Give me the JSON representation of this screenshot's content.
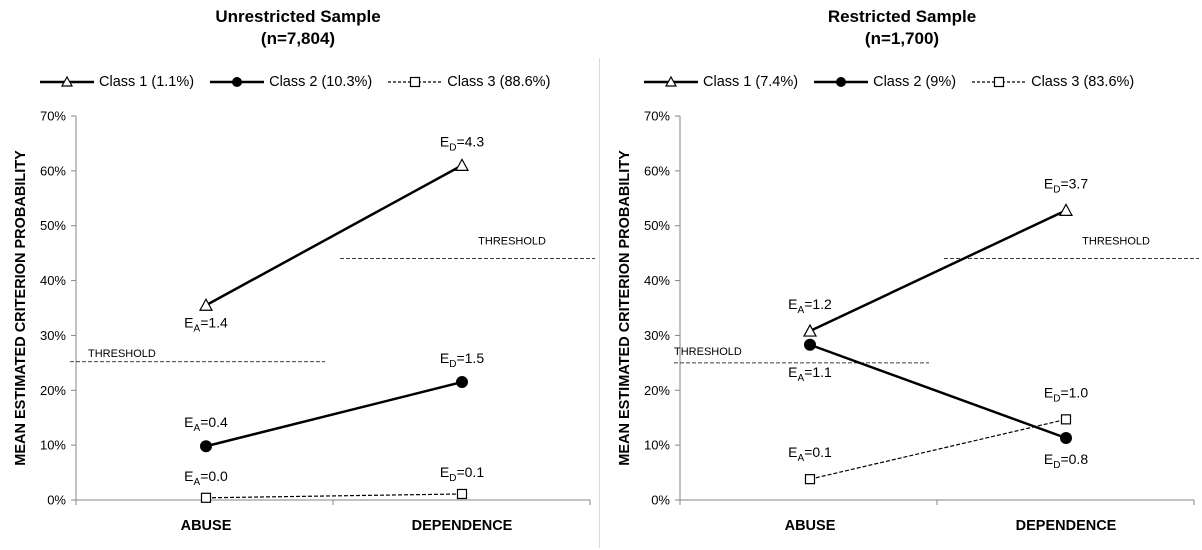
{
  "chart_data": [
    {
      "type": "line",
      "title": "Unrestricted Sample",
      "subtitle": "(n=7,804)",
      "ylabel": "MEAN ESTIMATED CRITERION PROBABILITY",
      "categories": [
        "ABUSE",
        "DEPENDENCE"
      ],
      "ylim": [
        0,
        70
      ],
      "yticks": [
        "0%",
        "10%",
        "20%",
        "30%",
        "40%",
        "50%",
        "60%",
        "70%"
      ],
      "grid": false,
      "legend_position": "top",
      "series": [
        {
          "name": "Class 1 (1.1%)",
          "marker": "triangle-open",
          "line": "solid",
          "values": [
            35.5,
            61.0
          ],
          "labels": [
            {
              "sym": "E",
              "sub": "A",
              "val": "=1.4"
            },
            {
              "sym": "E",
              "sub": "D",
              "val": "=4.3"
            }
          ]
        },
        {
          "name": "Class 2 (10.3%)",
          "marker": "circle-filled",
          "line": "solid",
          "values": [
            9.8,
            21.5
          ],
          "labels": [
            {
              "sym": "E",
              "sub": "A",
              "val": "=0.4"
            },
            {
              "sym": "E",
              "sub": "D",
              "val": "=1.5"
            }
          ]
        },
        {
          "name": "Class 3 (88.6%)",
          "marker": "square-open",
          "line": "dashed",
          "values": [
            0.4,
            1.1
          ],
          "labels": [
            {
              "sym": "E",
              "sub": "A",
              "val": "=0.0"
            },
            {
              "sym": "E",
              "sub": "D",
              "val": "=0.1"
            }
          ]
        }
      ],
      "thresholds": [
        {
          "label": "THRESHOLD",
          "category": "ABUSE",
          "value": 25.2
        },
        {
          "label": "THRESHOLD",
          "category": "DEPENDENCE",
          "value": 44.0
        }
      ]
    },
    {
      "type": "line",
      "title": "Restricted Sample",
      "subtitle": "(n=1,700)",
      "ylabel": "MEAN ESTIMATED CRITERION PROBABILITY",
      "categories": [
        "ABUSE",
        "DEPENDENCE"
      ],
      "ylim": [
        0,
        70
      ],
      "yticks": [
        "0%",
        "10%",
        "20%",
        "30%",
        "40%",
        "50%",
        "60%",
        "70%"
      ],
      "grid": false,
      "legend_position": "top",
      "series": [
        {
          "name": "Class 1 (7.4%)",
          "marker": "triangle-open",
          "line": "solid",
          "values": [
            30.8,
            52.8
          ],
          "labels": [
            {
              "sym": "E",
              "sub": "A",
              "val": "=1.2"
            },
            {
              "sym": "E",
              "sub": "D",
              "val": "=3.7"
            }
          ]
        },
        {
          "name": "Class 2 (9%)",
          "marker": "circle-filled",
          "line": "solid",
          "values": [
            28.3,
            11.3
          ],
          "labels": [
            {
              "sym": "E",
              "sub": "A",
              "val": "=1.1"
            },
            {
              "sym": "E",
              "sub": "D",
              "val": "=0.8"
            }
          ]
        },
        {
          "name": "Class 3 (83.6%)",
          "marker": "square-open",
          "line": "dashed",
          "values": [
            3.8,
            14.7
          ],
          "labels": [
            {
              "sym": "E",
              "sub": "A",
              "val": "=0.1"
            },
            {
              "sym": "E",
              "sub": "D",
              "val": "=1.0"
            }
          ]
        }
      ],
      "thresholds": [
        {
          "label": "THRESHOLD",
          "category": "ABUSE",
          "value": 25.0
        },
        {
          "label": "THRESHOLD",
          "category": "DEPENDENCE",
          "value": 44.0
        }
      ]
    }
  ]
}
